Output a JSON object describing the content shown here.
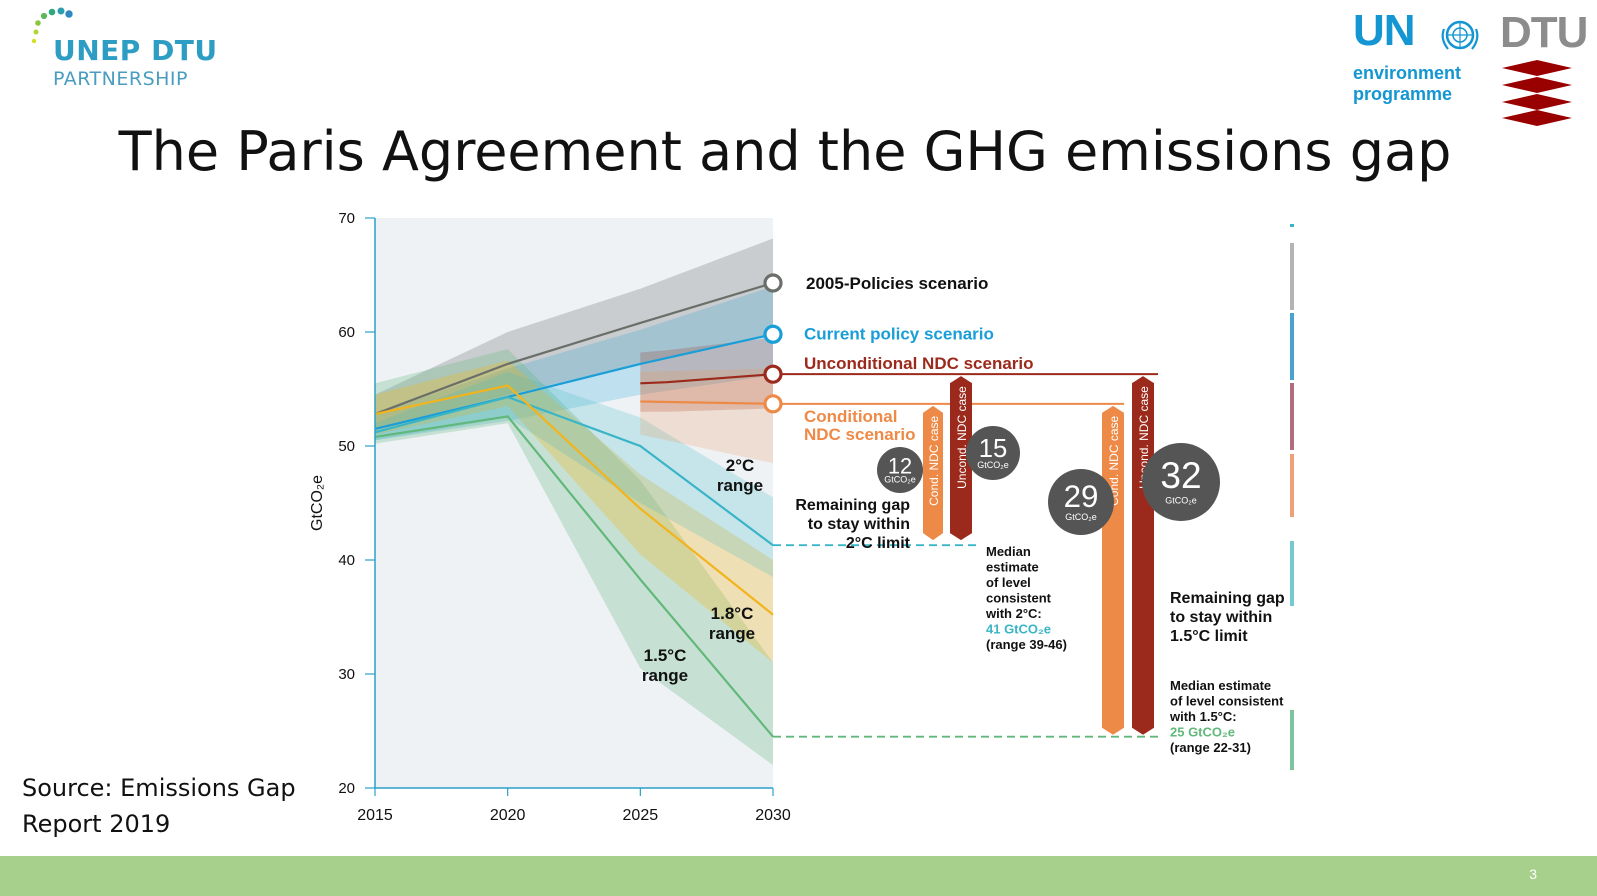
{
  "logos": {
    "unep_dtu": {
      "line1": "UNEP DTU",
      "line2": "PARTNERSHIP",
      "color": "#2d9dc4"
    },
    "un_environment": {
      "text": "UN",
      "line1": "environment",
      "line2": "programme",
      "color": "#1396d2"
    },
    "dtu": {
      "text": "DTU",
      "text_color": "#8c8c8c",
      "mark_color": "#990000"
    }
  },
  "slide": {
    "title": "The Paris Agreement and the GHG emissions gap",
    "source_line1": "Source: Emissions Gap",
    "source_line2": "Report 2019",
    "page_number": "3"
  },
  "colors": {
    "policies_2005": "#6b6f6a",
    "current_policy": "#1a9ed8",
    "unconditional_ndc": "#9c2a1c",
    "conditional_ndc": "#ee8a48",
    "range_2c": "#3ab5c6",
    "range_18c": "#f2b41d",
    "range_15c": "#62b87a",
    "footer": "#a8d08d"
  },
  "chart_data": {
    "type": "line",
    "ylabel": "GtCO₂e",
    "xlabel": "",
    "x_ticks": [
      "2015",
      "2020",
      "2025",
      "2030"
    ],
    "y_ticks": [
      "20",
      "30",
      "40",
      "50",
      "60",
      "70"
    ],
    "xlim": [
      2015,
      2030
    ],
    "ylim": [
      20,
      70
    ],
    "series": [
      {
        "name": "2005-Policies scenario",
        "color": "#6b6f6a",
        "x": [
          2015,
          2020,
          2025,
          2030
        ],
        "y": [
          52.8,
          57.2,
          60.8,
          64.3
        ],
        "band_low": [
          51.5,
          54.5,
          57.2,
          59.8
        ],
        "band_high": [
          54.5,
          60.0,
          63.8,
          68.2
        ]
      },
      {
        "name": "Current policy scenario",
        "color": "#1a9ed8",
        "x": [
          2015,
          2020,
          2025,
          2030
        ],
        "y": [
          51.5,
          54.3,
          57.2,
          59.8
        ],
        "band_low": [
          50.5,
          52.2,
          54.5,
          56.2
        ],
        "band_high": [
          52.8,
          56.8,
          60.2,
          64.0
        ]
      },
      {
        "name": "Unconditional NDC scenario",
        "color": "#9c2a1c",
        "x": [
          2025,
          2026,
          2030
        ],
        "y": [
          55.5,
          55.6,
          56.3
        ],
        "band_low": [
          53.0,
          53.0,
          53.3
        ],
        "band_high": [
          58.2,
          58.4,
          59.5
        ]
      },
      {
        "name": "Conditional NDC scenario",
        "color": "#ee8a48",
        "x": [
          2025,
          2030
        ],
        "y": [
          53.9,
          53.7
        ],
        "band_low": [
          51.0,
          48.5
        ],
        "band_high": [
          56.5,
          56.8
        ]
      },
      {
        "name": "2°C range",
        "color": "#3ab5c6",
        "x": [
          2015,
          2020,
          2025,
          2030
        ],
        "y": [
          51.2,
          54.3,
          50.0,
          41.3
        ],
        "band_low": [
          50.5,
          52.5,
          45.0,
          38.5
        ],
        "band_high": [
          52.0,
          56.5,
          52.5,
          45.5
        ]
      },
      {
        "name": "1.8°C range",
        "color": "#f2b41d",
        "x": [
          2015,
          2020,
          2025,
          2030
        ],
        "y": [
          52.8,
          55.3,
          44.5,
          35.2
        ],
        "band_low": [
          51.0,
          53.5,
          40.5,
          31.0
        ],
        "band_high": [
          54.5,
          57.5,
          47.5,
          40.0
        ]
      },
      {
        "name": "1.5°C range",
        "color": "#62b87a",
        "x": [
          2015,
          2020,
          2025,
          2030
        ],
        "y": [
          50.8,
          52.6,
          38.3,
          24.5
        ],
        "band_low": [
          50.2,
          52.0,
          30.5,
          22.0
        ],
        "band_high": [
          55.5,
          58.5,
          47.0,
          31.0
        ]
      }
    ],
    "scenario_labels": [
      "2005-Policies scenario",
      "Current policy scenario",
      "Unconditional NDC scenario",
      "Conditional NDC scenario"
    ],
    "range_labels": [
      {
        "line1": "2°C",
        "line2": "range"
      },
      {
        "line1": "1.8°C",
        "line2": "range"
      },
      {
        "line1": "1.5°C",
        "line2": "range"
      }
    ],
    "gaps_2c": {
      "caption": [
        "Remaining gap",
        "to stay within",
        "2°C limit"
      ],
      "conditional": {
        "label": "Cond. NDC case",
        "value": "12",
        "unit": "GtCO₂e"
      },
      "unconditional": {
        "label": "Uncond. NDC case",
        "value": "15",
        "unit": "GtCO₂e"
      },
      "median": {
        "lines": [
          "Median",
          "estimate",
          "of level",
          "consistent",
          "with 2°C:"
        ],
        "value": "41 GtCO₂e",
        "range": "(range 39-46)"
      }
    },
    "gaps_15c": {
      "caption": [
        "Remaining gap",
        "to stay within",
        "1.5°C limit"
      ],
      "conditional": {
        "label": "Cond. NDC case",
        "value": "29",
        "unit": "GtCO₂e"
      },
      "unconditional": {
        "label": "Uncond. NDC case",
        "value": "32",
        "unit": "GtCO₂e"
      },
      "median": {
        "lines": [
          "Median estimate",
          "of level consistent",
          "with 1.5°C:"
        ],
        "value": "25 GtCO₂e",
        "range": "(range 22-31)"
      }
    },
    "side_scale_colors": [
      "#3ab5c6",
      "#b4b4b4",
      "#4aa3cf",
      "#b06d7d",
      "#eea07a",
      "#76c9cf",
      "#7fc49c"
    ]
  }
}
